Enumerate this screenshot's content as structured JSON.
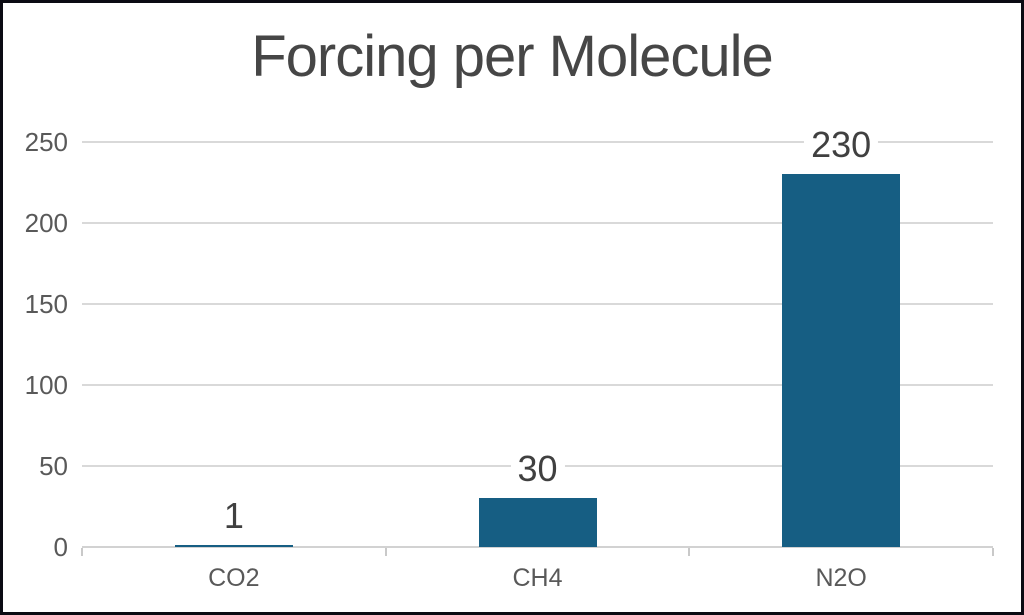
{
  "window": {
    "background": "#ffffff",
    "border_color": "#0b0b13"
  },
  "chart_data": {
    "type": "bar",
    "title": "Forcing per Molecule",
    "categories": [
      "CO2",
      "CH4",
      "N2O"
    ],
    "values": [
      1,
      30,
      230
    ],
    "data_labels": [
      "1",
      "30",
      "230"
    ],
    "xlabel": "",
    "ylabel": "",
    "ylim": [
      0,
      250
    ],
    "y_ticks": [
      0,
      50,
      100,
      150,
      200,
      250
    ],
    "grid": true,
    "legend": "none",
    "colors": {
      "bar": "#165E83",
      "gridline": "#D9D9D9",
      "axis_line": "#D2D2D2",
      "tick": "#C9C9C9",
      "axis_label": "#595959",
      "category_label": "#595959",
      "data_label": "#404040",
      "title": "#464646"
    }
  }
}
